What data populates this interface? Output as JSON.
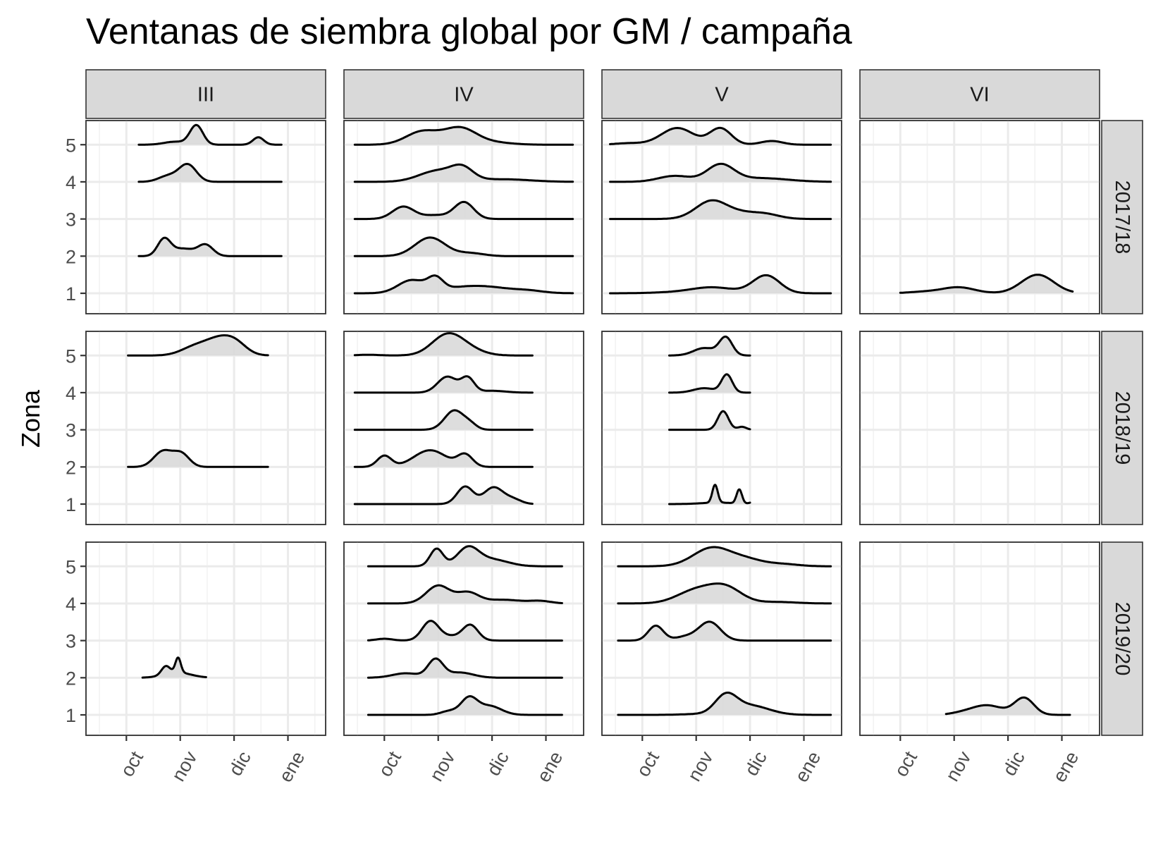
{
  "chart_data": {
    "type": "ridgeline",
    "title": "Ventanas de siembra global por GM / campaña",
    "ylabel": "Zona",
    "xlabel": "",
    "x_ticks": [
      "oct",
      "nov",
      "dic",
      "ene"
    ],
    "y_ticks": [
      "1",
      "2",
      "3",
      "4",
      "5"
    ],
    "columns": [
      "III",
      "IV",
      "V",
      "VI"
    ],
    "rows": [
      "2017/18",
      "2018/19",
      "2019/20"
    ],
    "x_unit": "month offset (0 = oct, 1 = nov, 2 = dic, 3 = ene)",
    "xlim": [
      -0.75,
      3.7
    ],
    "ylim": [
      0.45,
      5.65
    ],
    "grid": true,
    "fill_color": "#d9d9d9",
    "line_color": "#000000",
    "panels": [
      {
        "gm": "III",
        "campaign": "2017/18",
        "ridges": [
          {
            "zona": 5,
            "xmin": 0.23,
            "xmax": 2.88,
            "peaks": [
              [
                1.3,
                0.12,
                0.52
              ],
              [
                0.9,
                0.2,
                0.08
              ],
              [
                2.45,
                0.1,
                0.2
              ]
            ]
          },
          {
            "zona": 4,
            "xmin": 0.23,
            "xmax": 2.88,
            "peaks": [
              [
                1.14,
                0.16,
                0.46
              ],
              [
                0.78,
                0.18,
                0.16
              ]
            ]
          },
          {
            "zona": 2,
            "xmin": 0.23,
            "xmax": 2.88,
            "peaks": [
              [
                0.7,
                0.12,
                0.45
              ],
              [
                1.47,
                0.14,
                0.3
              ],
              [
                1.05,
                0.2,
                0.2
              ]
            ]
          }
        ]
      },
      {
        "gm": "IV",
        "campaign": "2017/18",
        "ridges": [
          {
            "zona": 5,
            "xmin": -0.55,
            "xmax": 3.5,
            "peaks": [
              [
                0.7,
                0.3,
                0.35
              ],
              [
                1.4,
                0.3,
                0.44
              ],
              [
                2.0,
                0.35,
                0.06
              ]
            ]
          },
          {
            "zona": 4,
            "xmin": -0.55,
            "xmax": 3.5,
            "peaks": [
              [
                1.0,
                0.35,
                0.3
              ],
              [
                1.45,
                0.2,
                0.3
              ],
              [
                2.2,
                0.5,
                0.07
              ]
            ]
          },
          {
            "zona": 3,
            "xmin": -0.55,
            "xmax": 3.5,
            "peaks": [
              [
                0.35,
                0.2,
                0.33
              ],
              [
                1.48,
                0.18,
                0.45
              ],
              [
                0.95,
                0.25,
                0.1
              ]
            ]
          },
          {
            "zona": 2,
            "xmin": -0.55,
            "xmax": 3.5,
            "peaks": [
              [
                0.85,
                0.28,
                0.5
              ],
              [
                1.6,
                0.25,
                0.08
              ]
            ]
          },
          {
            "zona": 1,
            "xmin": -0.55,
            "xmax": 3.5,
            "peaks": [
              [
                0.5,
                0.25,
                0.33
              ],
              [
                0.95,
                0.14,
                0.32
              ],
              [
                1.7,
                0.6,
                0.2
              ],
              [
                2.7,
                0.25,
                0.04
              ]
            ]
          }
        ]
      },
      {
        "gm": "V",
        "campaign": "2017/18",
        "ridges": [
          {
            "zona": 5,
            "xmin": -0.6,
            "xmax": 3.5,
            "peaks": [
              [
                -0.25,
                0.25,
                0.04
              ],
              [
                0.65,
                0.3,
                0.45
              ],
              [
                1.45,
                0.2,
                0.44
              ],
              [
                2.4,
                0.2,
                0.1
              ]
            ]
          },
          {
            "zona": 4,
            "xmin": -0.6,
            "xmax": 3.5,
            "peaks": [
              [
                0.6,
                0.3,
                0.16
              ],
              [
                1.45,
                0.25,
                0.45
              ],
              [
                2.2,
                0.5,
                0.1
              ]
            ]
          },
          {
            "zona": 3,
            "xmin": -0.6,
            "xmax": 3.5,
            "peaks": [
              [
                1.3,
                0.3,
                0.5
              ],
              [
                2.2,
                0.3,
                0.16
              ],
              [
                1.8,
                0.2,
                0.06
              ]
            ]
          },
          {
            "zona": 1,
            "xmin": -0.6,
            "xmax": 3.5,
            "peaks": [
              [
                1.3,
                0.4,
                0.16
              ],
              [
                2.3,
                0.25,
                0.48
              ],
              [
                0.5,
                0.4,
                0.02
              ]
            ]
          }
        ]
      },
      {
        "gm": "VI",
        "campaign": "2017/18",
        "ridges": [
          {
            "zona": 1,
            "xmin": 0.0,
            "xmax": 3.2,
            "peaks": [
              [
                1.08,
                0.3,
                0.16
              ],
              [
                2.55,
                0.3,
                0.5
              ],
              [
                0.45,
                0.3,
                0.04
              ]
            ]
          }
        ]
      },
      {
        "gm": "III",
        "campaign": "2018/19",
        "ridges": [
          {
            "zona": 5,
            "xmin": 0.03,
            "xmax": 2.63,
            "peaks": [
              [
                1.75,
                0.28,
                0.45
              ],
              [
                1.25,
                0.25,
                0.2
              ],
              [
                2.05,
                0.2,
                0.18
              ]
            ]
          },
          {
            "zona": 2,
            "xmin": 0.03,
            "xmax": 2.63,
            "peaks": [
              [
                0.68,
                0.17,
                0.42
              ],
              [
                1.02,
                0.15,
                0.35
              ]
            ]
          }
        ]
      },
      {
        "gm": "IV",
        "campaign": "2018/19",
        "ridges": [
          {
            "zona": 5,
            "xmin": -0.55,
            "xmax": 2.75,
            "peaks": [
              [
                1.15,
                0.28,
                0.5
              ],
              [
                1.5,
                0.3,
                0.18
              ],
              [
                -0.3,
                0.2,
                0.02
              ]
            ]
          },
          {
            "zona": 4,
            "xmin": -0.55,
            "xmax": 2.75,
            "peaks": [
              [
                1.17,
                0.18,
                0.43
              ],
              [
                1.55,
                0.12,
                0.38
              ],
              [
                2.0,
                0.25,
                0.05
              ]
            ]
          },
          {
            "zona": 3,
            "xmin": -0.55,
            "xmax": 2.75,
            "peaks": [
              [
                1.3,
                0.18,
                0.52
              ],
              [
                1.6,
                0.12,
                0.12
              ]
            ]
          },
          {
            "zona": 2,
            "xmin": -0.55,
            "xmax": 2.75,
            "peaks": [
              [
                0.0,
                0.13,
                0.3
              ],
              [
                0.85,
                0.3,
                0.45
              ],
              [
                1.5,
                0.14,
                0.32
              ]
            ]
          },
          {
            "zona": 1,
            "xmin": -0.55,
            "xmax": 2.75,
            "peaks": [
              [
                1.5,
                0.15,
                0.47
              ],
              [
                2.03,
                0.18,
                0.45
              ],
              [
                2.4,
                0.15,
                0.12
              ]
            ]
          }
        ]
      },
      {
        "gm": "V",
        "campaign": "2018/19",
        "ridges": [
          {
            "zona": 5,
            "xmin": 0.5,
            "xmax": 2.0,
            "peaks": [
              [
                1.55,
                0.12,
                0.48
              ],
              [
                1.15,
                0.2,
                0.2
              ]
            ]
          },
          {
            "zona": 4,
            "xmin": 0.5,
            "xmax": 2.0,
            "peaks": [
              [
                1.57,
                0.1,
                0.48
              ],
              [
                1.15,
                0.2,
                0.12
              ]
            ]
          },
          {
            "zona": 3,
            "xmin": 0.5,
            "xmax": 2.0,
            "peaks": [
              [
                1.5,
                0.1,
                0.5
              ],
              [
                1.85,
                0.08,
                0.08
              ]
            ]
          },
          {
            "zona": 1,
            "xmin": 0.5,
            "xmax": 2.0,
            "peaks": [
              [
                1.35,
                0.05,
                0.48
              ],
              [
                1.8,
                0.05,
                0.38
              ],
              [
                2.15,
                0.1,
                0.1
              ],
              [
                1.4,
                0.3,
                0.04
              ]
            ]
          }
        ]
      },
      {
        "gm": "VI",
        "campaign": "2018/19",
        "ridges": []
      },
      {
        "gm": "III",
        "campaign": "2019/20",
        "ridges": [
          {
            "zona": 2,
            "xmin": 0.3,
            "xmax": 1.48,
            "peaks": [
              [
                0.73,
                0.08,
                0.22
              ],
              [
                0.96,
                0.05,
                0.4
              ],
              [
                0.95,
                0.25,
                0.14
              ]
            ]
          }
        ]
      },
      {
        "gm": "IV",
        "campaign": "2019/20",
        "ridges": [
          {
            "zona": 5,
            "xmin": -0.3,
            "xmax": 3.3,
            "peaks": [
              [
                0.97,
                0.12,
                0.47
              ],
              [
                1.55,
                0.2,
                0.48
              ],
              [
                2.0,
                0.3,
                0.18
              ]
            ]
          },
          {
            "zona": 4,
            "xmin": -0.3,
            "xmax": 3.3,
            "peaks": [
              [
                1.0,
                0.22,
                0.48
              ],
              [
                1.55,
                0.2,
                0.28
              ],
              [
                2.2,
                0.35,
                0.1
              ],
              [
                2.9,
                0.2,
                0.06
              ]
            ]
          },
          {
            "zona": 3,
            "xmin": -0.3,
            "xmax": 3.3,
            "peaks": [
              [
                0.0,
                0.15,
                0.05
              ],
              [
                0.85,
                0.15,
                0.47
              ],
              [
                1.6,
                0.14,
                0.38
              ],
              [
                1.2,
                0.3,
                0.12
              ]
            ]
          },
          {
            "zona": 2,
            "xmin": -0.3,
            "xmax": 3.3,
            "peaks": [
              [
                0.95,
                0.14,
                0.48
              ],
              [
                0.4,
                0.25,
                0.12
              ],
              [
                1.4,
                0.25,
                0.14
              ]
            ]
          },
          {
            "zona": 1,
            "xmin": -0.3,
            "xmax": 3.3,
            "peaks": [
              [
                1.57,
                0.15,
                0.44
              ],
              [
                1.95,
                0.22,
                0.24
              ],
              [
                1.2,
                0.15,
                0.1
              ]
            ]
          }
        ]
      },
      {
        "gm": "V",
        "campaign": "2019/20",
        "ridges": [
          {
            "zona": 5,
            "xmin": -0.45,
            "xmax": 3.5,
            "peaks": [
              [
                1.3,
                0.35,
                0.5
              ],
              [
                1.95,
                0.3,
                0.16
              ],
              [
                2.6,
                0.3,
                0.06
              ]
            ]
          },
          {
            "zona": 4,
            "xmin": -0.45,
            "xmax": 3.5,
            "peaks": [
              [
                1.0,
                0.35,
                0.35
              ],
              [
                1.55,
                0.3,
                0.4
              ],
              [
                2.5,
                0.35,
                0.04
              ]
            ]
          },
          {
            "zona": 3,
            "xmin": -0.45,
            "xmax": 3.5,
            "peaks": [
              [
                0.25,
                0.14,
                0.4
              ],
              [
                1.25,
                0.2,
                0.5
              ],
              [
                0.8,
                0.2,
                0.1
              ]
            ]
          },
          {
            "zona": 1,
            "xmin": -0.45,
            "xmax": 3.5,
            "peaks": [
              [
                1.55,
                0.2,
                0.48
              ],
              [
                2.0,
                0.35,
                0.25
              ],
              [
                1.0,
                0.3,
                0.02
              ]
            ]
          }
        ]
      },
      {
        "gm": "VI",
        "campaign": "2019/20",
        "ridges": [
          {
            "zona": 1,
            "xmin": 0.85,
            "xmax": 3.15,
            "peaks": [
              [
                1.6,
                0.3,
                0.26
              ],
              [
                2.3,
                0.18,
                0.45
              ],
              [
                1.1,
                0.2,
                0.03
              ]
            ]
          }
        ]
      }
    ]
  }
}
